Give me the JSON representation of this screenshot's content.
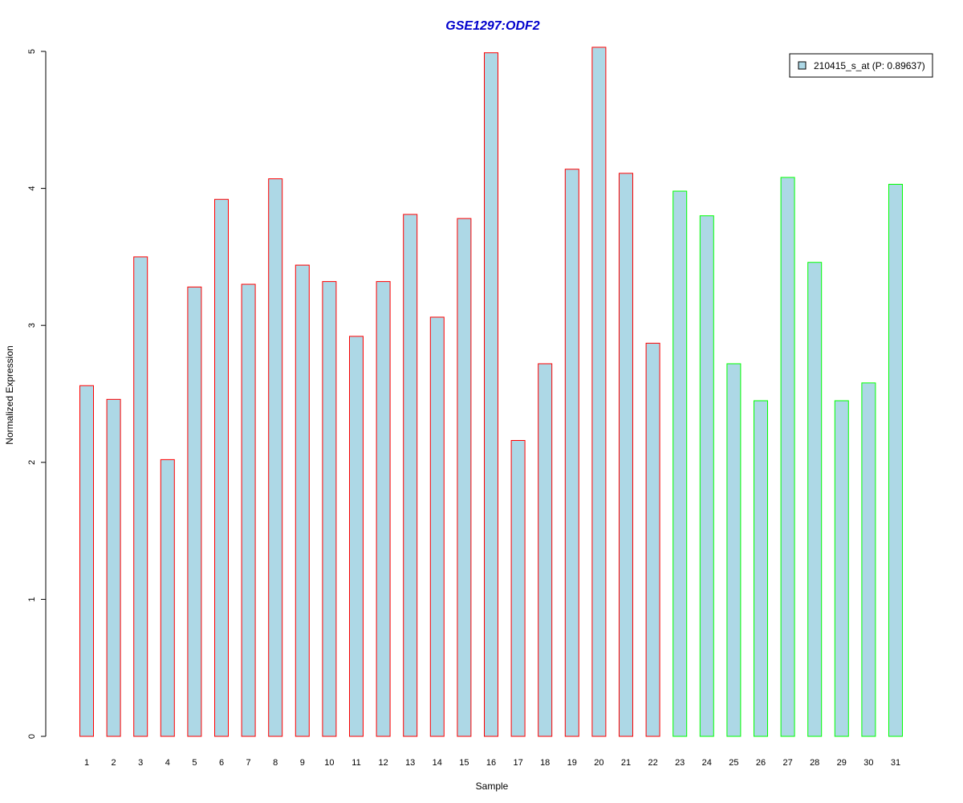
{
  "chart_data": {
    "type": "bar",
    "title": "GSE1297:ODF2",
    "xlabel": "Sample",
    "ylabel": "Normalized Expression",
    "ylim": [
      0,
      5
    ],
    "yticks": [
      0,
      1,
      2,
      3,
      4,
      5
    ],
    "categories": [
      "1",
      "2",
      "3",
      "4",
      "5",
      "6",
      "7",
      "8",
      "9",
      "10",
      "11",
      "12",
      "13",
      "14",
      "15",
      "16",
      "17",
      "18",
      "19",
      "20",
      "21",
      "22",
      "23",
      "24",
      "25",
      "26",
      "27",
      "28",
      "29",
      "30",
      "31"
    ],
    "series": [
      {
        "name": "210415_s_at (P: 0.89637)",
        "values": [
          2.56,
          2.46,
          3.5,
          2.02,
          3.28,
          3.92,
          3.3,
          4.07,
          3.44,
          3.32,
          2.92,
          3.32,
          3.81,
          3.06,
          3.78,
          4.99,
          2.16,
          2.72,
          4.14,
          5.03,
          4.11,
          2.87,
          3.98,
          3.8,
          2.72,
          2.45,
          4.08,
          3.46,
          2.45,
          2.58,
          4.03
        ],
        "fill_color": "#add8e6"
      }
    ],
    "group_outline_colors": [
      "#ff0000",
      "#ff0000",
      "#ff0000",
      "#ff0000",
      "#ff0000",
      "#ff0000",
      "#ff0000",
      "#ff0000",
      "#ff0000",
      "#ff0000",
      "#ff0000",
      "#ff0000",
      "#ff0000",
      "#ff0000",
      "#ff0000",
      "#ff0000",
      "#ff0000",
      "#ff0000",
      "#ff0000",
      "#ff0000",
      "#ff0000",
      "#ff0000",
      "#00ff00",
      "#00ff00",
      "#00ff00",
      "#00ff00",
      "#00ff00",
      "#00ff00",
      "#00ff00",
      "#00ff00",
      "#00ff00"
    ],
    "legend": {
      "placement": "top-right",
      "entries": [
        "210415_s_at (P: 0.89637)"
      ]
    },
    "grid": false,
    "colors": {
      "title": "#0000cc",
      "bar_fill": "#add8e6",
      "legend_swatch_border": "#000000",
      "axis": "#000000"
    }
  }
}
